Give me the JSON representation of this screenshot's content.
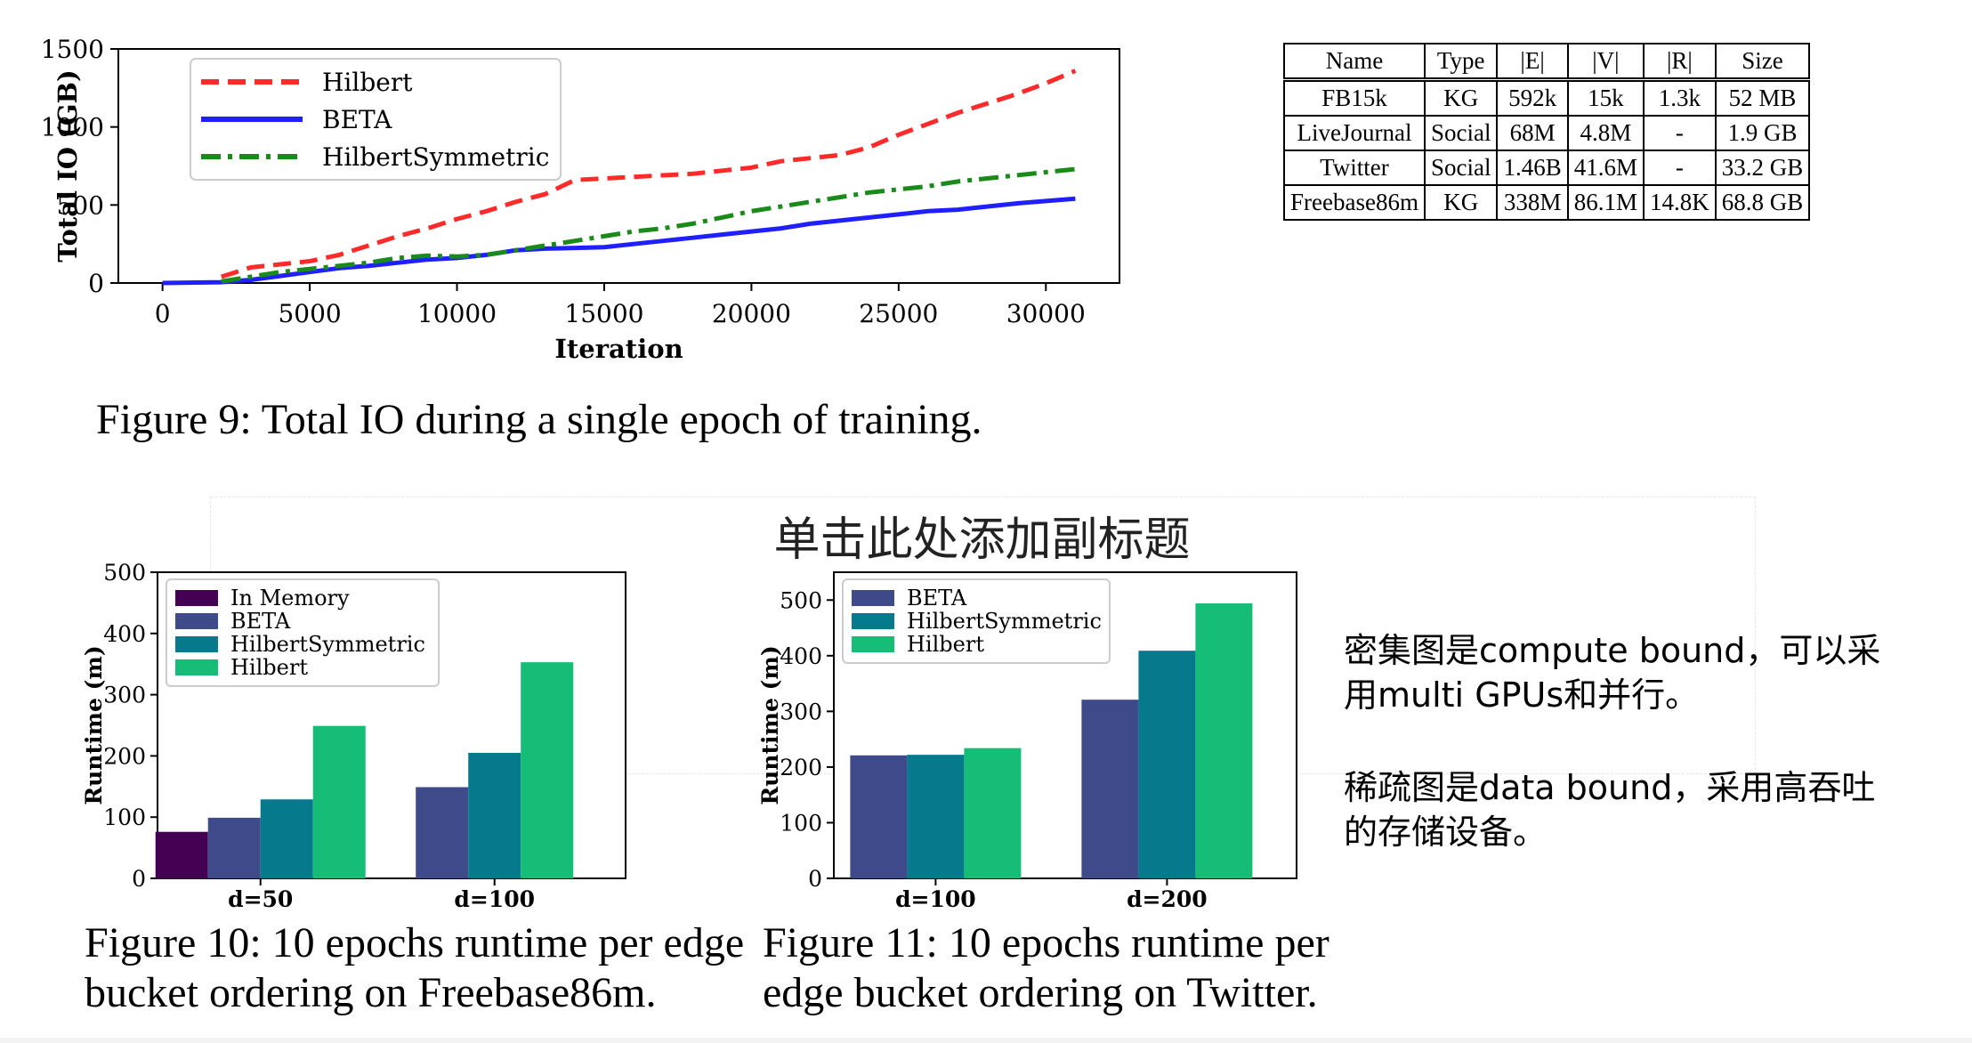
{
  "chart_data": [
    {
      "type": "line",
      "title": "",
      "caption": "Figure 9: Total IO during a single epoch of training.",
      "xlabel": "Iteration",
      "ylabel": "Total IO (GB)",
      "xlim": [
        -1500,
        32500
      ],
      "ylim": [
        0,
        1500
      ],
      "xticks": [
        0,
        5000,
        10000,
        15000,
        20000,
        25000,
        30000
      ],
      "yticks": [
        0,
        500,
        1000,
        1500
      ],
      "legend_position": "upper-left",
      "series": [
        {
          "name": "Hilbert",
          "color": "#ff2a2a",
          "style": "dashed",
          "x": [
            2000,
            2500,
            3000,
            4000,
            5000,
            6000,
            7000,
            8000,
            9000,
            10000,
            11000,
            12000,
            13000,
            14000,
            15000,
            16000,
            17000,
            18000,
            19000,
            20000,
            21000,
            22000,
            23000,
            24000,
            25000,
            26000,
            27000,
            28000,
            29000,
            30000,
            31000
          ],
          "y": [
            40,
            70,
            100,
            120,
            140,
            180,
            240,
            300,
            350,
            410,
            460,
            520,
            570,
            660,
            670,
            680,
            690,
            700,
            720,
            740,
            780,
            800,
            820,
            870,
            950,
            1020,
            1090,
            1150,
            1210,
            1280,
            1360
          ]
        },
        {
          "name": "BETA",
          "color": "#1f1fff",
          "style": "solid",
          "x": [
            0,
            2000,
            3000,
            4000,
            5000,
            6000,
            7000,
            8000,
            9000,
            10000,
            11000,
            12000,
            13000,
            14000,
            15000,
            16000,
            17000,
            18000,
            19000,
            20000,
            21000,
            22000,
            23000,
            24000,
            25000,
            26000,
            27000,
            28000,
            29000,
            30000,
            31000
          ],
          "y": [
            0,
            5,
            20,
            45,
            70,
            95,
            110,
            130,
            150,
            160,
            180,
            210,
            220,
            225,
            230,
            250,
            270,
            290,
            310,
            330,
            350,
            380,
            400,
            420,
            440,
            460,
            470,
            490,
            510,
            525,
            540
          ]
        },
        {
          "name": "HilbertSymmetric",
          "color": "#1a8a1a",
          "style": "dashdot",
          "x": [
            2000,
            3000,
            4000,
            5000,
            6000,
            7000,
            8000,
            9000,
            10000,
            11000,
            12000,
            13000,
            14000,
            15000,
            16000,
            17000,
            18000,
            19000,
            20000,
            21000,
            22000,
            23000,
            24000,
            25000,
            26000,
            27000,
            28000,
            29000,
            30000,
            31000
          ],
          "y": [
            10,
            40,
            70,
            90,
            110,
            130,
            160,
            175,
            170,
            180,
            210,
            240,
            270,
            300,
            330,
            350,
            380,
            420,
            460,
            490,
            520,
            550,
            580,
            600,
            620,
            650,
            670,
            690,
            710,
            730
          ]
        }
      ]
    },
    {
      "type": "bar",
      "title": "",
      "caption": "Figure 10: 10 epochs runtime per edge bucket ordering on Freebase86m.",
      "ylabel": "Runtime (m)",
      "categories": [
        "d=50",
        "d=100"
      ],
      "ylim": [
        0,
        500
      ],
      "yticks": [
        0,
        100,
        200,
        300,
        400,
        500
      ],
      "legend_position": "upper-left",
      "series": [
        {
          "name": "In Memory",
          "color": "#440154",
          "values": [
            76,
            null
          ]
        },
        {
          "name": "BETA",
          "color": "#3e4a89",
          "values": [
            99,
            149
          ]
        },
        {
          "name": "HilbertSymmetric",
          "color": "#06798d",
          "values": [
            129,
            205
          ]
        },
        {
          "name": "Hilbert",
          "color": "#16bd77",
          "values": [
            249,
            353
          ]
        }
      ]
    },
    {
      "type": "bar",
      "title": "",
      "caption": "Figure 11: 10 epochs runtime per edge bucket ordering on Twitter.",
      "ylabel": "Runtime (m)",
      "categories": [
        "d=100",
        "d=200"
      ],
      "ylim": [
        0,
        550
      ],
      "yticks": [
        0,
        100,
        200,
        300,
        400,
        500
      ],
      "legend_position": "upper-left",
      "series": [
        {
          "name": "BETA",
          "color": "#3e4a89",
          "values": [
            221,
            321
          ]
        },
        {
          "name": "HilbertSymmetric",
          "color": "#06798d",
          "values": [
            222,
            409
          ]
        },
        {
          "name": "Hilbert",
          "color": "#16bd77",
          "values": [
            234,
            494
          ]
        }
      ]
    }
  ],
  "captions": {
    "fig9": "Figure 9: Total IO during a single epoch of training.",
    "fig10_line1": "Figure 10: 10 epochs runtime per edge",
    "fig10_line2": "bucket ordering on Freebase86m.",
    "fig11_line1": "Figure 11:  10 epochs runtime per",
    "fig11_line2": "edge bucket ordering on Twitter."
  },
  "dataset_table": {
    "headers": [
      "Name",
      "Type",
      "|E|",
      "|V|",
      "|R|",
      "Size"
    ],
    "rows": [
      [
        "FB15k",
        "KG",
        "592k",
        "15k",
        "1.3k",
        "52 MB"
      ],
      [
        "LiveJournal",
        "Social",
        "68M",
        "4.8M",
        "-",
        "1.9 GB"
      ],
      [
        "Twitter",
        "Social",
        "1.46B",
        "41.6M",
        "-",
        "33.2 GB"
      ],
      [
        "Freebase86m",
        "KG",
        "338M",
        "86.1M",
        "14.8K",
        "68.8 GB"
      ]
    ]
  },
  "subtitle_placeholder": "单击此处添加副标题",
  "notes": {
    "dense_line1": "密集图是compute bound，可以采",
    "dense_line2": "用multi GPUs和并行。",
    "sparse_line1": "稀疏图是data bound，采用高吞吐",
    "sparse_line2": "的存储设备。"
  }
}
